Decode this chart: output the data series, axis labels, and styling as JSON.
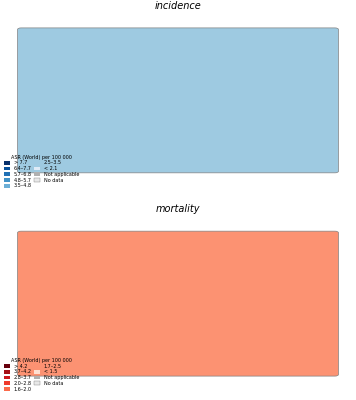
{
  "title_incidence": "incidence",
  "title_mortality": "mortality",
  "incidence_legend_title": "ASR (World) per 100 000",
  "incidence_legend_labels": [
    "> 7.7",
    "6.4–7.7",
    "5.7–6.8",
    "4.8–5.7",
    "3.5–4.8",
    "2.5–3.5",
    "< 2.1"
  ],
  "incidence_colors": [
    "#08306b",
    "#08519c",
    "#2171b5",
    "#4292c6",
    "#6baed6",
    "#9ecae1",
    "#deebf7"
  ],
  "mortality_legend_title": "ASR (World) per 100 000",
  "mortality_legend_labels": [
    "> 4.2",
    "3.7–4.2",
    "2.8–3.7",
    "2.0–2.8",
    "1.6–2.0",
    "1.7–2.5",
    "< 1.5"
  ],
  "mortality_colors": [
    "#67000d",
    "#a50f15",
    "#cb181d",
    "#ef3b2c",
    "#fb6a4a",
    "#fc9272",
    "#fee0d2"
  ],
  "not_applicable_color": "#b0b0b0",
  "no_data_color": "#e8e8e8",
  "background_color": "#ffffff",
  "fig_width": 3.56,
  "fig_height": 4.0,
  "dpi": 100
}
